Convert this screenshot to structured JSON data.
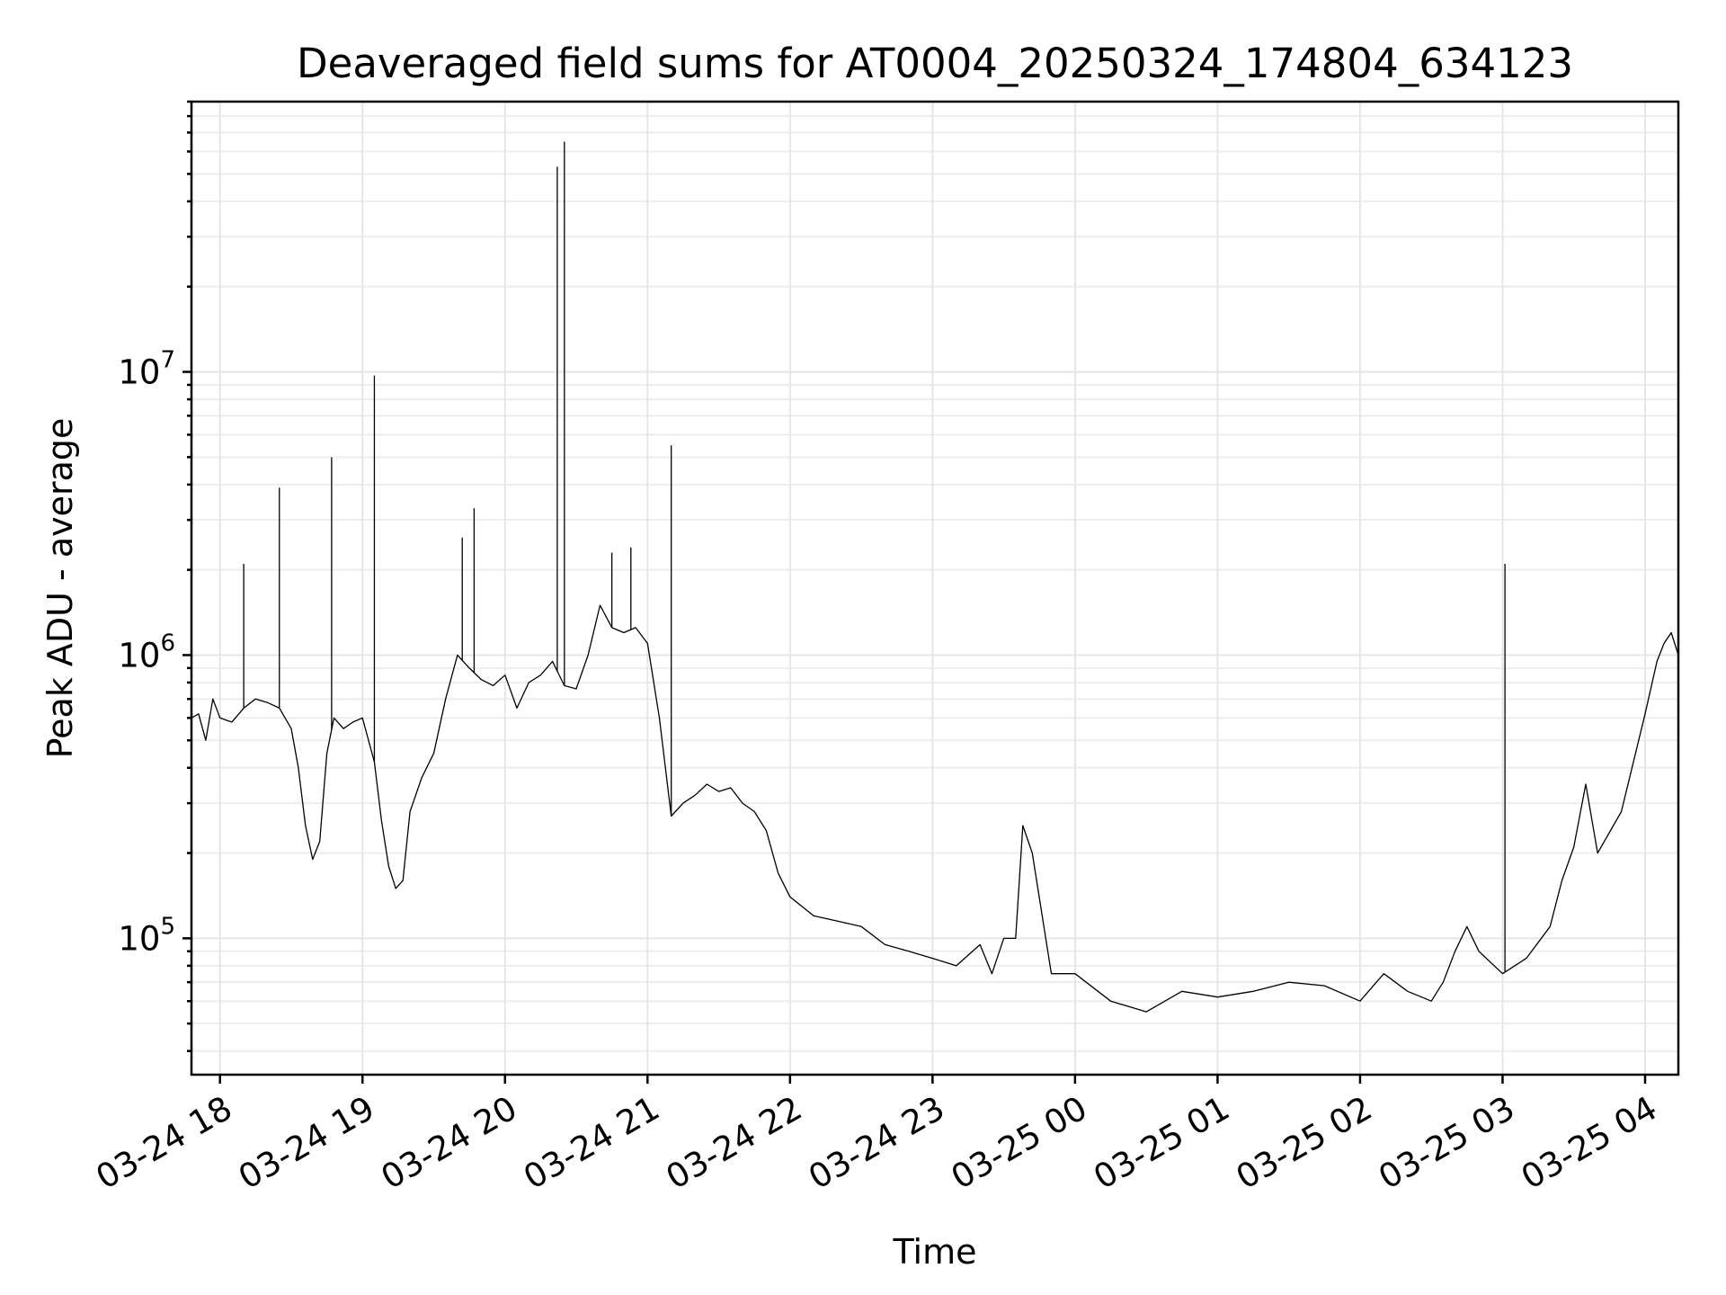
{
  "chart_data": {
    "type": "line",
    "title": "Deaveraged field sums for AT0004_20250324_174804_634123",
    "xlabel": "Time",
    "ylabel": "Peak ADU - average",
    "xscale": "time",
    "yscale": "log",
    "xlim": [
      "2025-03-24 17:48",
      "2025-03-25 04:14"
    ],
    "ylim": [
      33000,
      90000000
    ],
    "grid": true,
    "legend": "none",
    "line_color": "#000000",
    "x_tick_labels": [
      "03-24 18",
      "03-24 19",
      "03-24 20",
      "03-24 21",
      "03-24 22",
      "03-24 23",
      "03-25 00",
      "03-25 01",
      "03-25 02",
      "03-25 03",
      "03-25 04"
    ],
    "x_tick_times": [
      "2025-03-24 18:00",
      "2025-03-24 19:00",
      "2025-03-24 20:00",
      "2025-03-24 21:00",
      "2025-03-24 22:00",
      "2025-03-24 23:00",
      "2025-03-25 00:00",
      "2025-03-25 01:00",
      "2025-03-25 02:00",
      "2025-03-25 03:00",
      "2025-03-25 04:00"
    ],
    "y_ticks": [
      {
        "value": 100000,
        "base": "10",
        "exp": "5"
      },
      {
        "value": 1000000,
        "base": "10",
        "exp": "6"
      },
      {
        "value": 10000000,
        "base": "10",
        "exp": "7"
      }
    ],
    "series": [
      {
        "x": [
          "2025-03-24 17:48",
          "2025-03-24 17:51",
          "2025-03-24 17:54",
          "2025-03-24 17:57",
          "2025-03-24 18:00",
          "2025-03-24 18:05",
          "2025-03-24 18:10",
          "2025-03-24 18:15",
          "2025-03-24 18:20",
          "2025-03-24 18:25",
          "2025-03-24 18:30",
          "2025-03-24 18:33",
          "2025-03-24 18:36",
          "2025-03-24 18:39",
          "2025-03-24 18:42",
          "2025-03-24 18:45",
          "2025-03-24 18:48",
          "2025-03-24 18:52",
          "2025-03-24 18:56",
          "2025-03-24 19:00",
          "2025-03-24 19:05",
          "2025-03-24 19:08",
          "2025-03-24 19:11",
          "2025-03-24 19:14",
          "2025-03-24 19:17",
          "2025-03-24 19:20",
          "2025-03-24 19:25",
          "2025-03-24 19:30",
          "2025-03-24 19:35",
          "2025-03-24 19:40",
          "2025-03-24 19:45",
          "2025-03-24 19:50",
          "2025-03-24 19:55",
          "2025-03-24 20:00",
          "2025-03-24 20:05",
          "2025-03-24 20:10",
          "2025-03-24 20:15",
          "2025-03-24 20:20",
          "2025-03-24 20:25",
          "2025-03-24 20:30",
          "2025-03-24 20:35",
          "2025-03-24 20:40",
          "2025-03-24 20:45",
          "2025-03-24 20:50",
          "2025-03-24 20:55",
          "2025-03-24 21:00",
          "2025-03-24 21:05",
          "2025-03-24 21:10",
          "2025-03-24 21:15",
          "2025-03-24 21:20",
          "2025-03-24 21:25",
          "2025-03-24 21:30",
          "2025-03-24 21:35",
          "2025-03-24 21:40",
          "2025-03-24 21:45",
          "2025-03-24 21:50",
          "2025-03-24 21:55",
          "2025-03-24 22:00",
          "2025-03-24 22:10",
          "2025-03-24 22:20",
          "2025-03-24 22:30",
          "2025-03-24 22:40",
          "2025-03-24 22:50",
          "2025-03-24 23:00",
          "2025-03-24 23:10",
          "2025-03-24 23:20",
          "2025-03-24 23:25",
          "2025-03-24 23:30",
          "2025-03-24 23:35",
          "2025-03-24 23:38",
          "2025-03-24 23:42",
          "2025-03-24 23:50",
          "2025-03-25 00:00",
          "2025-03-25 00:15",
          "2025-03-25 00:30",
          "2025-03-25 00:45",
          "2025-03-25 01:00",
          "2025-03-25 01:15",
          "2025-03-25 01:30",
          "2025-03-25 01:45",
          "2025-03-25 02:00",
          "2025-03-25 02:10",
          "2025-03-25 02:20",
          "2025-03-25 02:30",
          "2025-03-25 02:35",
          "2025-03-25 02:40",
          "2025-03-25 02:45",
          "2025-03-25 02:50",
          "2025-03-25 03:00",
          "2025-03-25 03:10",
          "2025-03-25 03:20",
          "2025-03-25 03:25",
          "2025-03-25 03:30",
          "2025-03-25 03:35",
          "2025-03-25 03:40",
          "2025-03-25 03:50",
          "2025-03-25 04:00",
          "2025-03-25 04:05",
          "2025-03-25 04:08",
          "2025-03-25 04:11",
          "2025-03-25 04:14"
        ],
        "y": [
          600000,
          620000,
          500000,
          700000,
          600000,
          580000,
          650000,
          700000,
          680000,
          650000,
          550000,
          400000,
          250000,
          190000,
          220000,
          450000,
          600000,
          550000,
          580000,
          600000,
          420000,
          260000,
          180000,
          150000,
          160000,
          280000,
          370000,
          450000,
          700000,
          1000000,
          900000,
          820000,
          780000,
          850000,
          650000,
          800000,
          850000,
          950000,
          780000,
          760000,
          1000000,
          1500000,
          1250000,
          1200000,
          1250000,
          1100000,
          600000,
          270000,
          300000,
          320000,
          350000,
          330000,
          340000,
          300000,
          280000,
          240000,
          170000,
          140000,
          120000,
          115000,
          110000,
          95000,
          90000,
          85000,
          80000,
          95000,
          75000,
          100000,
          100000,
          250000,
          200000,
          75000,
          75000,
          60000,
          55000,
          65000,
          62000,
          65000,
          70000,
          68000,
          60000,
          75000,
          65000,
          60000,
          70000,
          90000,
          110000,
          90000,
          75000,
          85000,
          110000,
          160000,
          210000,
          350000,
          200000,
          280000,
          620000,
          950000,
          1100000,
          1200000,
          1000000
        ]
      }
    ],
    "spikes": [
      {
        "x": "2025-03-24 18:10",
        "y": 2100000
      },
      {
        "x": "2025-03-24 18:25",
        "y": 3900000
      },
      {
        "x": "2025-03-24 18:47",
        "y": 5000000
      },
      {
        "x": "2025-03-24 19:05",
        "y": 9700000
      },
      {
        "x": "2025-03-24 19:42",
        "y": 2600000
      },
      {
        "x": "2025-03-24 19:47",
        "y": 3300000
      },
      {
        "x": "2025-03-24 20:22",
        "y": 53000000
      },
      {
        "x": "2025-03-24 20:25",
        "y": 65000000
      },
      {
        "x": "2025-03-24 20:45",
        "y": 2300000
      },
      {
        "x": "2025-03-24 20:53",
        "y": 2400000
      },
      {
        "x": "2025-03-24 21:10",
        "y": 5500000
      },
      {
        "x": "2025-03-25 03:01",
        "y": 2100000
      }
    ]
  }
}
